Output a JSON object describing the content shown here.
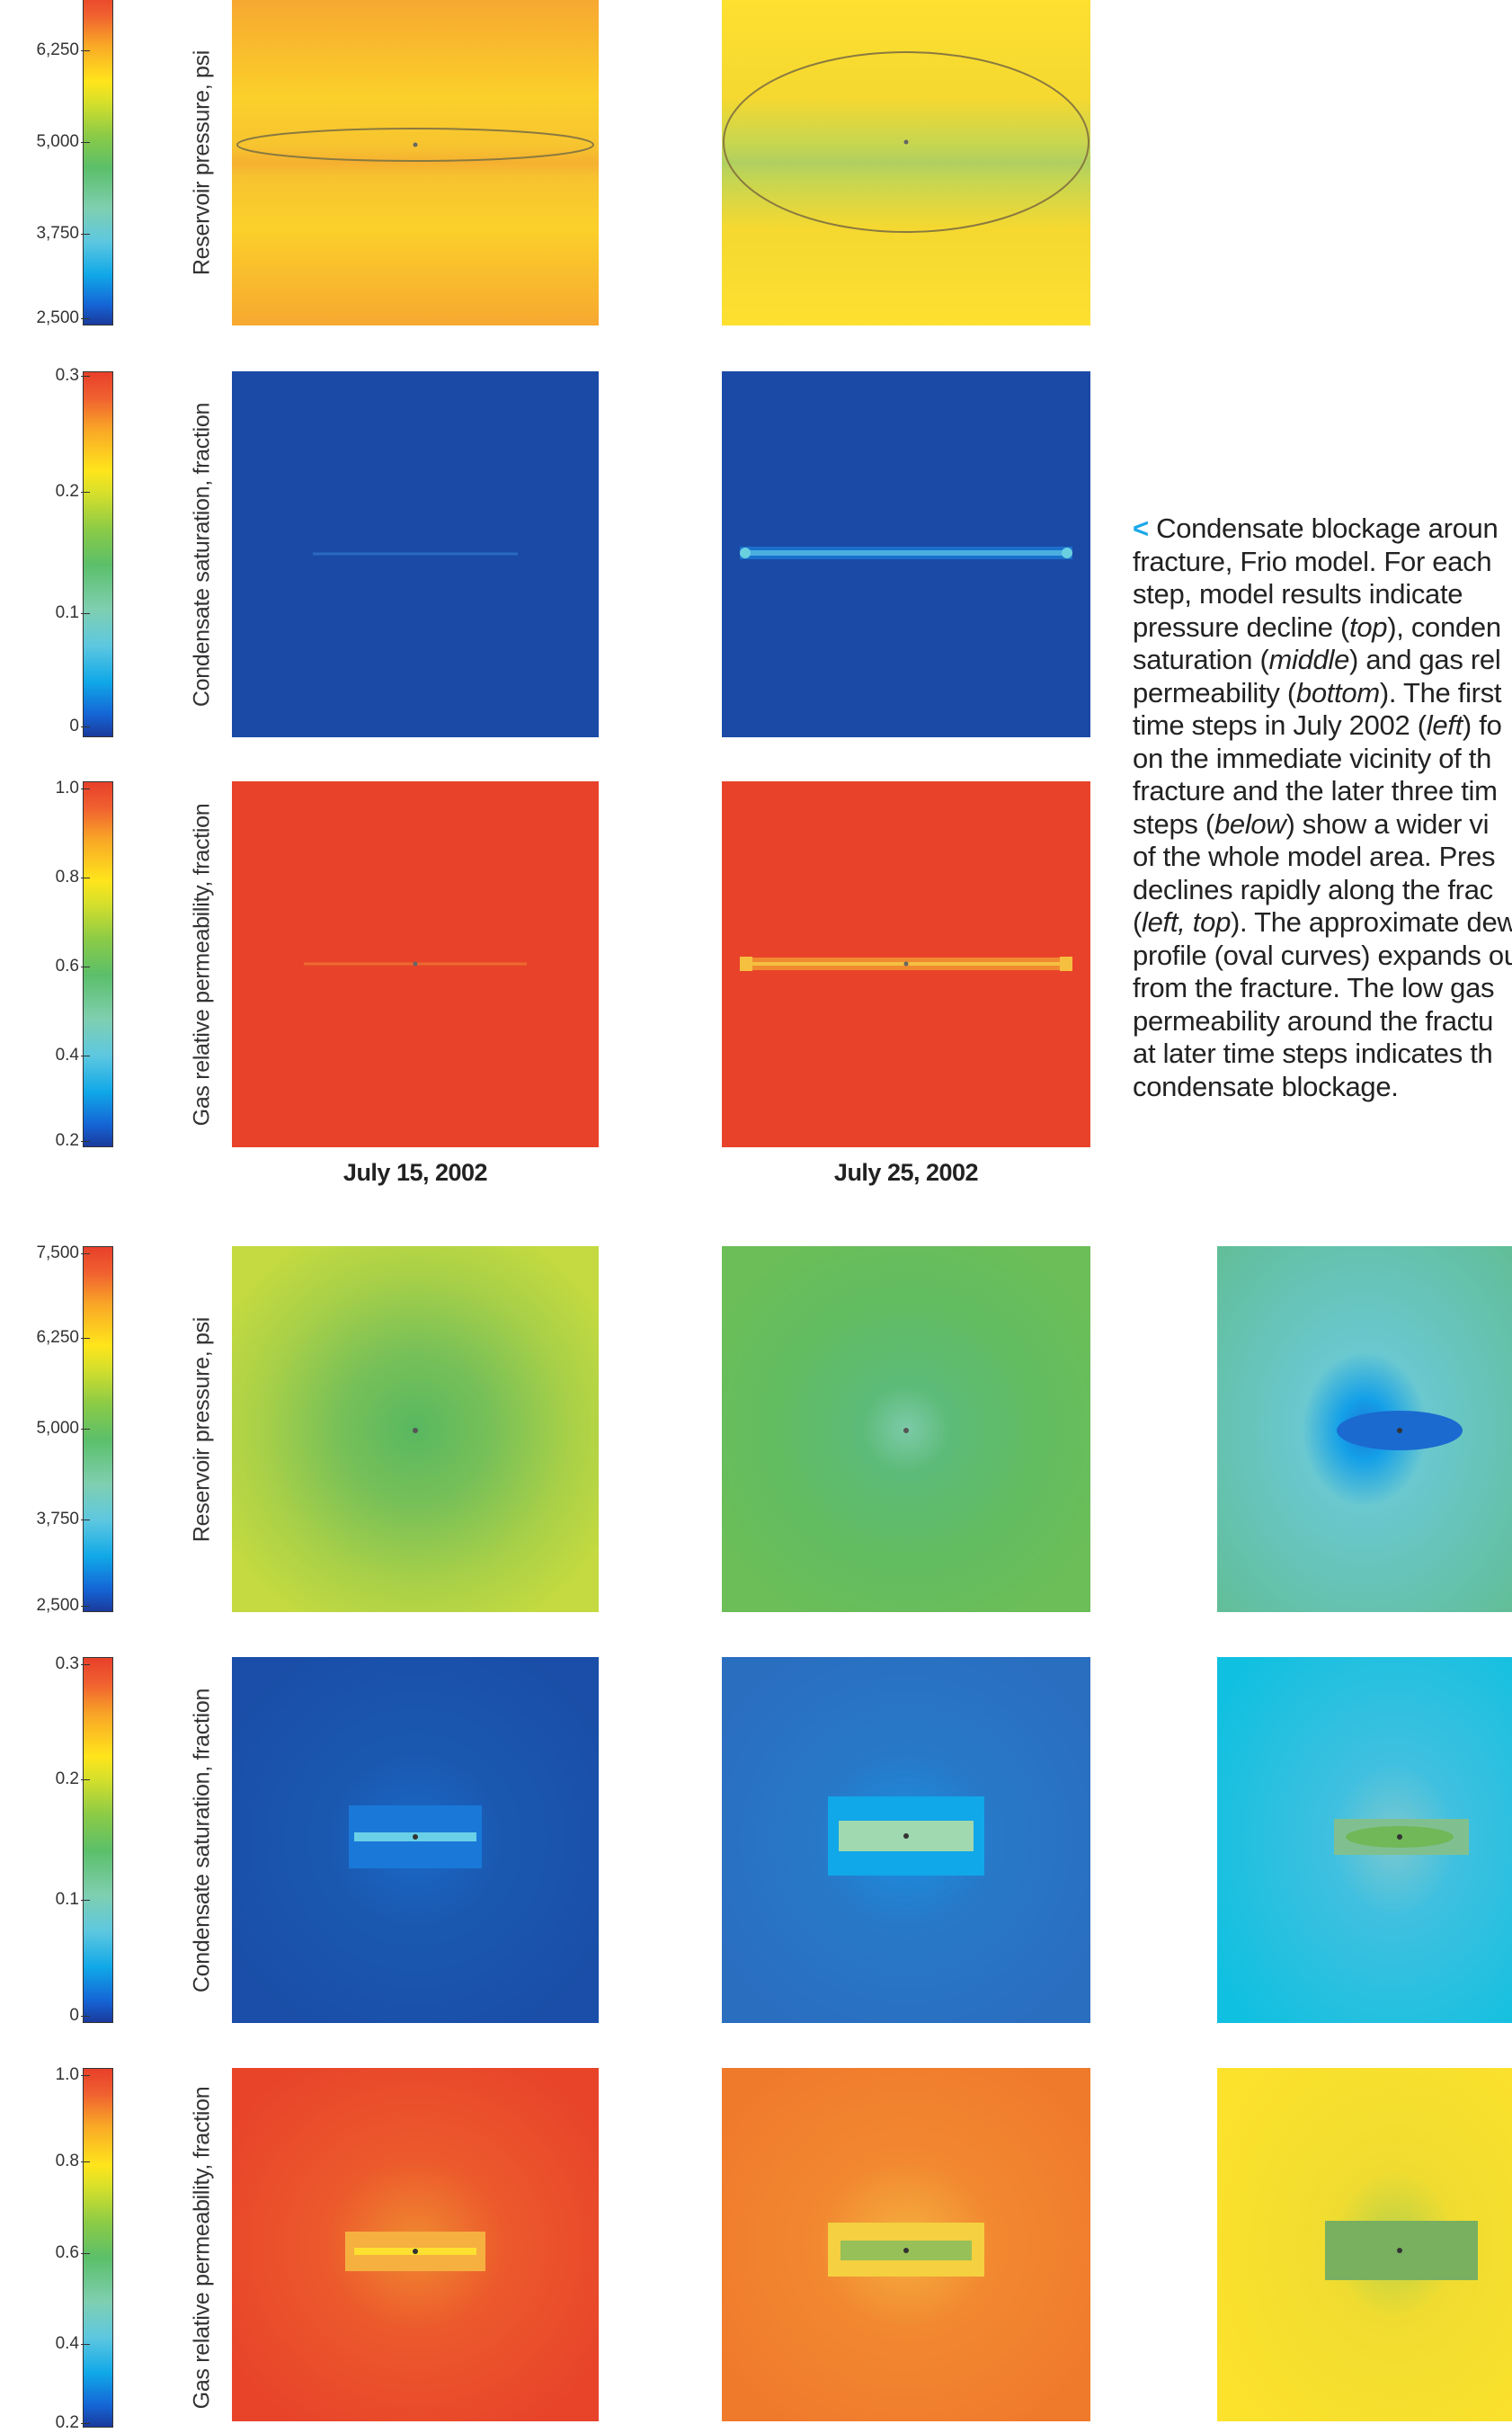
{
  "pressure_scale": {
    "ticks": [
      "6,250",
      "5,000",
      "3,750",
      "2,500"
    ]
  },
  "pressure_scale_b": {
    "ticks": [
      "7,500",
      "6,250",
      "5,000",
      "3,750",
      "2,500"
    ]
  },
  "saturation_scale": {
    "ticks": [
      "0.3",
      "0.2",
      "0.1",
      "0"
    ]
  },
  "permeability_scale": {
    "ticks": [
      "1.0",
      "0.8",
      "0.6",
      "0.4",
      "0.2"
    ]
  },
  "permeability_scale_b": {
    "ticks": [
      "1.0",
      "0.8",
      "0.6",
      "0.4",
      "0.2"
    ]
  },
  "row_labels": {
    "pressure": "Reservoir pressure, psi",
    "saturation": "Condensate saturation, fraction",
    "permeability": "Gas relative permeability, fraction"
  },
  "dates": [
    "July 15, 2002",
    "July 25, 2002"
  ],
  "caption": {
    "arrow": "<",
    "l1": " Condensate blockage aroun",
    "l2": "fracture, Frio model. For each",
    "l3": "step, model results indicate",
    "l4a": "pressure decline (",
    "l4b": "top",
    "l4c": "), conden",
    "l5a": "saturation (",
    "l5b": "middle",
    "l5c": ") and gas rel",
    "l6a": "permeability (",
    "l6b": "bottom",
    "l6c": "). The first",
    "l7a": "time steps in July 2002 (",
    "l7b": "left",
    "l7c": ") fo",
    "l8": "on the immediate vicinity of th",
    "l9": "fracture and the later three tim",
    "l10a": "steps (",
    "l10b": "below",
    "l10c": ") show a wider vi",
    "l11": "of the whole model area. Pres",
    "l12": "declines rapidly along the frac",
    "l13a": "(",
    "l13b": "left, top",
    "l13c": "). The approximate dew",
    "l14": "profile (oval curves) expands out",
    "l15": "from the fracture. The low gas",
    "l16": "permeability around the fractu",
    "l17": "at later time steps indicates th",
    "l18": "condensate blockage."
  },
  "colors": {
    "red": "#e8432a",
    "blue": "#1a4aa6",
    "yellow": "#fde22c"
  }
}
